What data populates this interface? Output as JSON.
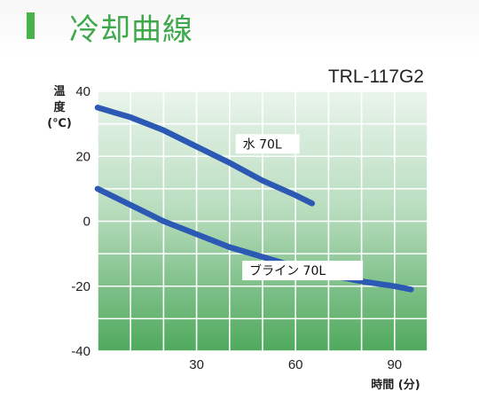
{
  "header": {
    "title": "冷却曲線"
  },
  "model": "TRL-117G2",
  "colors": {
    "accent": "#49b248",
    "title": "#3ea84a",
    "line": "#2b59b3",
    "grid": "#ffffff",
    "bg_top": "#e6f3e8",
    "bg_bottom": "#55ad62"
  },
  "chart_data": {
    "type": "line",
    "title": "",
    "xlabel": "時間 (分)",
    "ylabel": "温度 (℃)",
    "ylabel_lines": [
      "温",
      "度",
      "(℃)"
    ],
    "xlim": [
      0,
      100
    ],
    "ylim": [
      -40,
      40
    ],
    "xticks": [
      30,
      60,
      90
    ],
    "yticks": [
      40,
      20,
      0,
      -20,
      -40
    ],
    "grid": true,
    "series": [
      {
        "name": "水 70L",
        "x": [
          0,
          10,
          20,
          30,
          40,
          50,
          60,
          65
        ],
        "y": [
          35,
          32,
          28,
          23,
          18,
          12.5,
          8,
          5.5
        ]
      },
      {
        "name": "ブライン 70L",
        "x": [
          0,
          10,
          20,
          30,
          40,
          50,
          60,
          70,
          80,
          90,
          95
        ],
        "y": [
          10,
          5,
          0,
          -4,
          -8,
          -11,
          -14,
          -16.5,
          -18.5,
          -20,
          -21
        ]
      }
    ]
  }
}
